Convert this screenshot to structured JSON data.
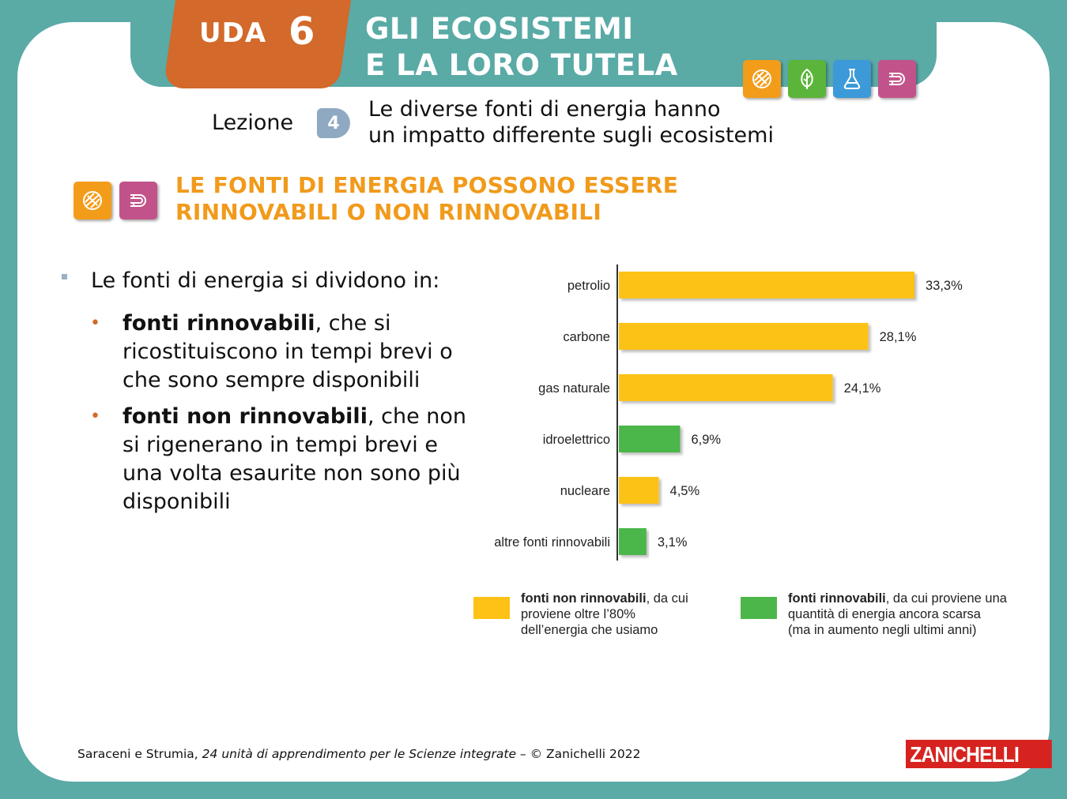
{
  "header": {
    "uda_label": "UDA",
    "uda_number": "6",
    "title_line1": "GLI ECOSISTEMI",
    "title_line2": "E LA LORO TUTELA",
    "icons": [
      {
        "name": "globe-icon",
        "color": "#f39c1a"
      },
      {
        "name": "leaf-icon",
        "color": "#5bb53a"
      },
      {
        "name": "flask-icon",
        "color": "#3c9ad8"
      },
      {
        "name": "magnet-icon",
        "color": "#c2538a"
      }
    ]
  },
  "lesson": {
    "label": "Lezione",
    "number": "4",
    "title_line1": "Le diverse fonti di energia hanno",
    "title_line2": "un impatto differente sugli ecosistemi"
  },
  "section": {
    "title_line1": "LE FONTI DI ENERGIA POSSONO ESSERE",
    "title_line2": "RINNOVABILI O NON RINNOVABILI",
    "icons": [
      {
        "name": "globe-icon",
        "color": "#f39c1a"
      },
      {
        "name": "magnet-icon",
        "color": "#c2538a"
      }
    ]
  },
  "bullets": {
    "intro": "Le fonti di energia si dividono in:",
    "items": [
      {
        "bold": "fonti rinnovabili",
        "text": ", che si ricostituiscono in tempi brevi o che sono sempre disponibili"
      },
      {
        "bold": "fonti non rinnovabili",
        "text": ", che non si rigenerano in tempi brevi e una volta esaurite non sono più disponibili"
      }
    ]
  },
  "chart_data": {
    "type": "bar",
    "orientation": "horizontal",
    "categories": [
      "petrolio",
      "carbone",
      "gas naturale",
      "idroelettrico",
      "nucleare",
      "altre fonti rinnovabili"
    ],
    "values": [
      33.3,
      28.1,
      24.1,
      6.9,
      4.5,
      3.1
    ],
    "value_labels": [
      "33,3%",
      "28,1%",
      "24,1%",
      "6,9%",
      "4,5%",
      "3,1%"
    ],
    "groups": [
      "non_rinnovabili",
      "non_rinnovabili",
      "non_rinnovabili",
      "rinnovabili",
      "non_rinnovabili",
      "rinnovabili"
    ],
    "colors": {
      "non_rinnovabili": "#fdc215",
      "rinnovabili": "#4cb64a"
    },
    "xlim": [
      0,
      33.3
    ],
    "grid": false,
    "legend": [
      {
        "group": "non_rinnovabili",
        "bold": "fonti non rinnovabili",
        "text": ", da cui",
        "line2": "proviene oltre l’80%",
        "line3": "dell’energia che usiamo"
      },
      {
        "group": "rinnovabili",
        "bold": "fonti rinnovabili",
        "text": ", da cui proviene una",
        "line2": "quantità di energia ancora scarsa",
        "line3": "(ma in aumento negli ultimi anni)"
      }
    ],
    "legend_position": "bottom"
  },
  "footer": {
    "authors": "Saraceni e Strumia, ",
    "book": "24 unità di apprendimento per le Scienze integrate",
    "rest": " – © Zanichelli 2022",
    "publisher": "ZANICHELLI"
  }
}
